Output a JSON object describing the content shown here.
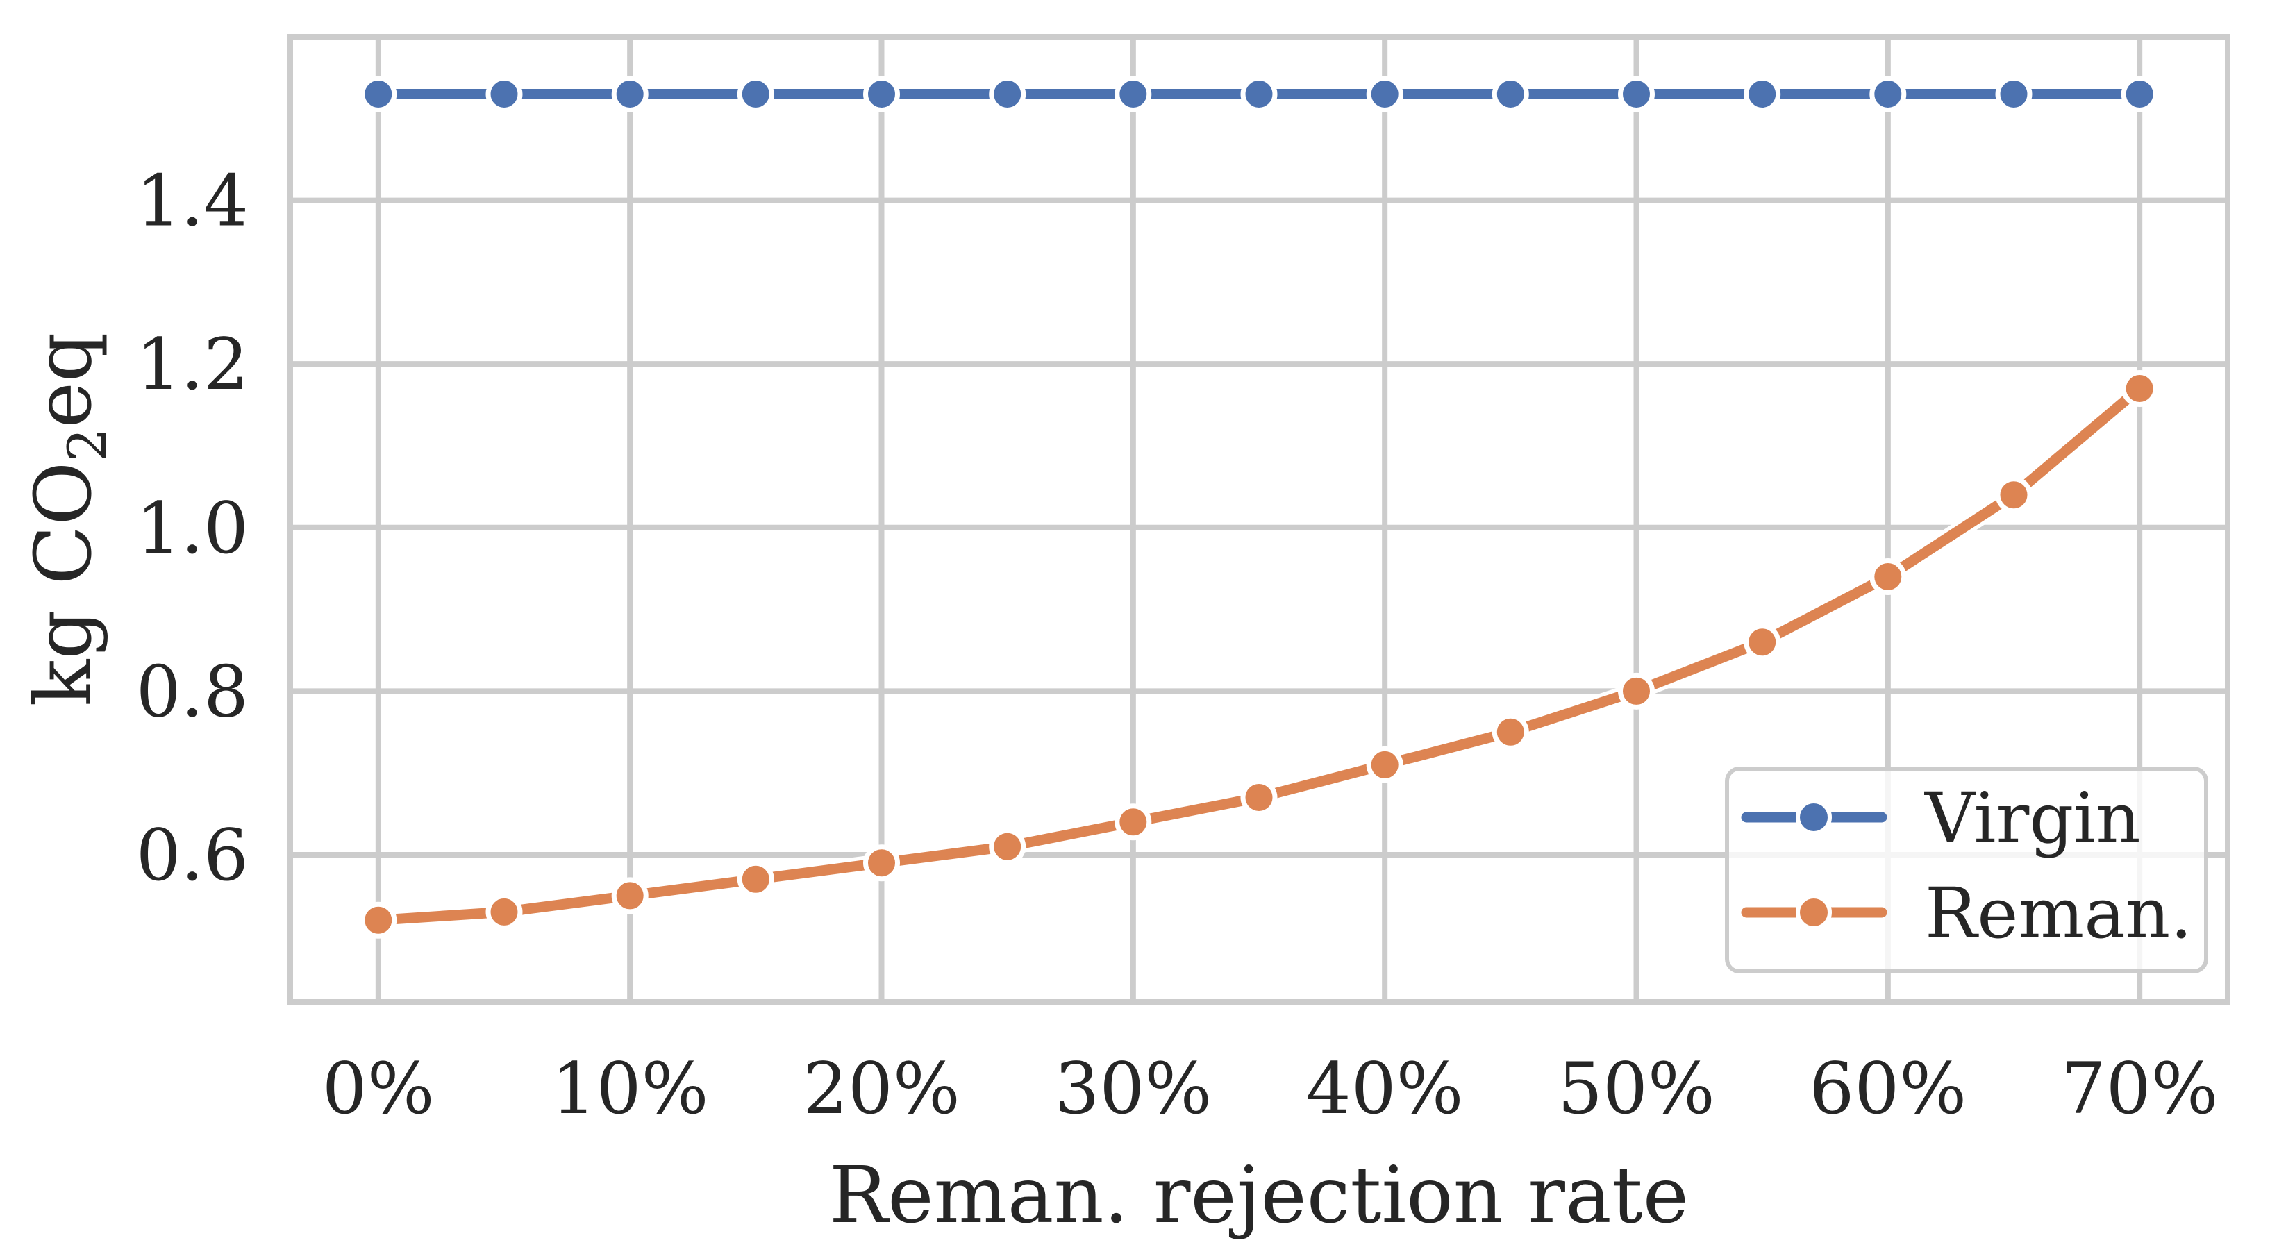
{
  "chart_data": {
    "type": "line",
    "title": "",
    "xlabel": "Reman. rejection rate",
    "ylabel": "kg CO2eq",
    "ylabel_parts": {
      "pre": "kg CO",
      "sub": "2",
      "post": "eq"
    },
    "x_unit": "%",
    "x": [
      0,
      5,
      10,
      15,
      20,
      25,
      30,
      35,
      40,
      45,
      50,
      55,
      60,
      65,
      70
    ],
    "x_tick_values": [
      0,
      10,
      20,
      30,
      40,
      50,
      60,
      70
    ],
    "x_tick_labels": [
      "0%",
      "10%",
      "20%",
      "30%",
      "40%",
      "50%",
      "60%",
      "70%"
    ],
    "y_tick_values": [
      0.6,
      0.8,
      1.0,
      1.2,
      1.4
    ],
    "y_tick_labels": [
      "0.6",
      "0.8",
      "1.0",
      "1.2",
      "1.4"
    ],
    "xlim": [
      -3.5,
      73.5
    ],
    "ylim": [
      0.42,
      1.6
    ],
    "grid": true,
    "legend_position": "lower right",
    "series": [
      {
        "name": "Virgin",
        "color": "#4C72B0",
        "values": [
          1.53,
          1.53,
          1.53,
          1.53,
          1.53,
          1.53,
          1.53,
          1.53,
          1.53,
          1.53,
          1.53,
          1.53,
          1.53,
          1.53,
          1.53
        ]
      },
      {
        "name": "Reman.",
        "color": "#DD8452",
        "values": [
          0.52,
          0.53,
          0.55,
          0.57,
          0.59,
          0.61,
          0.64,
          0.67,
          0.71,
          0.75,
          0.8,
          0.86,
          0.94,
          1.04,
          1.17
        ]
      }
    ],
    "style": {
      "grid_color": "#cccccc",
      "axes_edge_color": "#cccccc",
      "text_color": "#262626",
      "background_color": "#ffffff",
      "marker_edge_color": "#ffffff"
    }
  }
}
